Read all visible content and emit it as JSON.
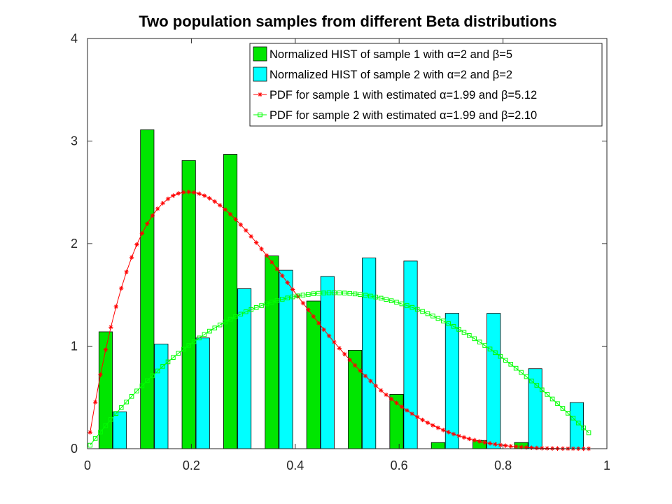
{
  "chart_data": {
    "type": "bar",
    "title": "Two population samples from different Beta distributions",
    "xlabel": "",
    "ylabel": "",
    "xlim": [
      0,
      1
    ],
    "ylim": [
      0,
      4
    ],
    "xticks": [
      0,
      0.2,
      0.4,
      0.6,
      0.8,
      1
    ],
    "xtick_labels": [
      "0",
      "0.2",
      "0.4",
      "0.6",
      "0.8",
      "1"
    ],
    "yticks": [
      0,
      1,
      2,
      3,
      4
    ],
    "ytick_labels": [
      "0",
      "1",
      "2",
      "3",
      "4"
    ],
    "grid": false,
    "legend_placement": "top-right",
    "histograms": [
      {
        "name": "Normalized HIST of sample 1 with α=2 and β=5",
        "color": "#00e600",
        "bin_centers": [
          0.035,
          0.115,
          0.195,
          0.275,
          0.355,
          0.435,
          0.515,
          0.595,
          0.675,
          0.755,
          0.835
        ],
        "bar_width": 0.026,
        "values": [
          1.14,
          3.11,
          2.81,
          2.87,
          1.88,
          1.44,
          0.96,
          0.53,
          0.06,
          0.08,
          0.06
        ]
      },
      {
        "name": "Normalized HIST of sample 2 with α=2 and β=2",
        "color": "#00ffff",
        "bin_centers": [
          0.062,
          0.142,
          0.222,
          0.302,
          0.382,
          0.462,
          0.542,
          0.622,
          0.702,
          0.782,
          0.862,
          0.942
        ],
        "bar_width": 0.026,
        "values": [
          0.36,
          1.02,
          1.08,
          1.56,
          1.74,
          1.68,
          1.86,
          1.83,
          1.32,
          1.32,
          0.78,
          0.45
        ]
      }
    ],
    "curves": [
      {
        "name": "PDF for sample 1 with estimated α=1.99 and β=5.12",
        "color": "#ff0000",
        "marker": "star",
        "alpha": 1.99,
        "beta": 5.12,
        "x_range": [
          0.005,
          0.965
        ],
        "n_points": 97
      },
      {
        "name": "PDF for sample 2 with estimated α=1.99 and β=2.10",
        "color": "#00ff00",
        "marker": "square",
        "alpha": 1.99,
        "beta": 2.1,
        "x_range": [
          0.005,
          0.965
        ],
        "n_points": 97
      }
    ]
  }
}
